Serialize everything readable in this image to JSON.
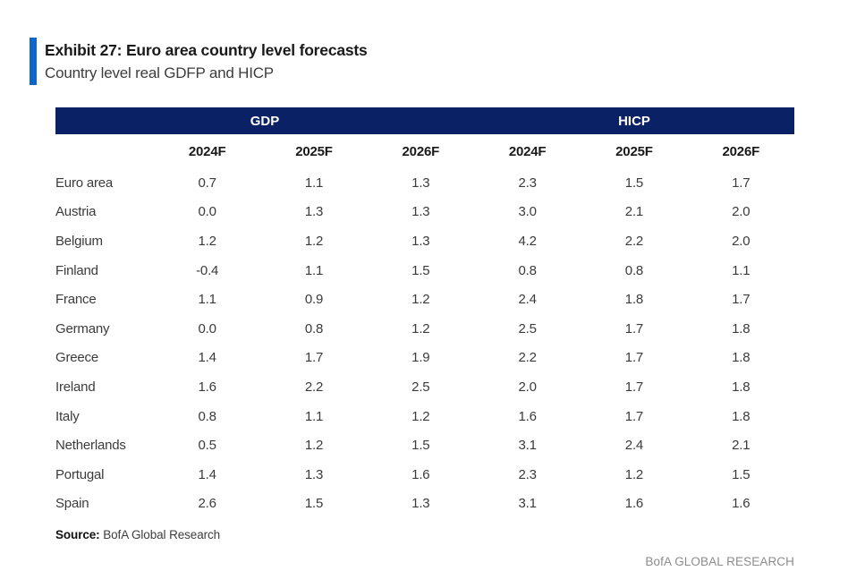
{
  "exhibit": {
    "title": "Exhibit 27: Euro area country level forecasts",
    "subtitle": "Country level real GDFP and HICP"
  },
  "source": {
    "label": "Source:",
    "text": "BofA Global Research"
  },
  "footer": {
    "brand": "BofA GLOBAL RESEARCH"
  },
  "colors": {
    "accent_blue": "#1065cb",
    "header_navy": "#0a2265",
    "body_text": "#3b3b3b",
    "footer_gray": "#8c8c8c"
  },
  "chart_data": {
    "type": "table",
    "group_headers": [
      {
        "label": "GDP",
        "span": 4
      },
      {
        "label": "HICP",
        "span": 3
      }
    ],
    "column_headers": [
      "2024F",
      "2025F",
      "2026F",
      "2024F",
      "2025F",
      "2026F"
    ],
    "rows": [
      {
        "country": "Euro area",
        "values": [
          "0.7",
          "1.1",
          "1.3",
          "2.3",
          "1.5",
          "1.7"
        ]
      },
      {
        "country": "Austria",
        "values": [
          "0.0",
          "1.3",
          "1.3",
          "3.0",
          "2.1",
          "2.0"
        ]
      },
      {
        "country": "Belgium",
        "values": [
          "1.2",
          "1.2",
          "1.3",
          "4.2",
          "2.2",
          "2.0"
        ]
      },
      {
        "country": "Finland",
        "values": [
          "-0.4",
          "1.1",
          "1.5",
          "0.8",
          "0.8",
          "1.1"
        ]
      },
      {
        "country": "France",
        "values": [
          "1.1",
          "0.9",
          "1.2",
          "2.4",
          "1.8",
          "1.7"
        ]
      },
      {
        "country": "Germany",
        "values": [
          "0.0",
          "0.8",
          "1.2",
          "2.5",
          "1.7",
          "1.8"
        ]
      },
      {
        "country": "Greece",
        "values": [
          "1.4",
          "1.7",
          "1.9",
          "2.2",
          "1.7",
          "1.8"
        ]
      },
      {
        "country": "Ireland",
        "values": [
          "1.6",
          "2.2",
          "2.5",
          "2.0",
          "1.7",
          "1.8"
        ]
      },
      {
        "country": "Italy",
        "values": [
          "0.8",
          "1.1",
          "1.2",
          "1.6",
          "1.7",
          "1.8"
        ]
      },
      {
        "country": "Netherlands",
        "values": [
          "0.5",
          "1.2",
          "1.5",
          "3.1",
          "2.4",
          "2.1"
        ]
      },
      {
        "country": "Portugal",
        "values": [
          "1.4",
          "1.3",
          "1.6",
          "2.3",
          "1.2",
          "1.5"
        ]
      },
      {
        "country": "Spain",
        "values": [
          "2.6",
          "1.5",
          "1.3",
          "3.1",
          "1.6",
          "1.6"
        ]
      }
    ]
  }
}
